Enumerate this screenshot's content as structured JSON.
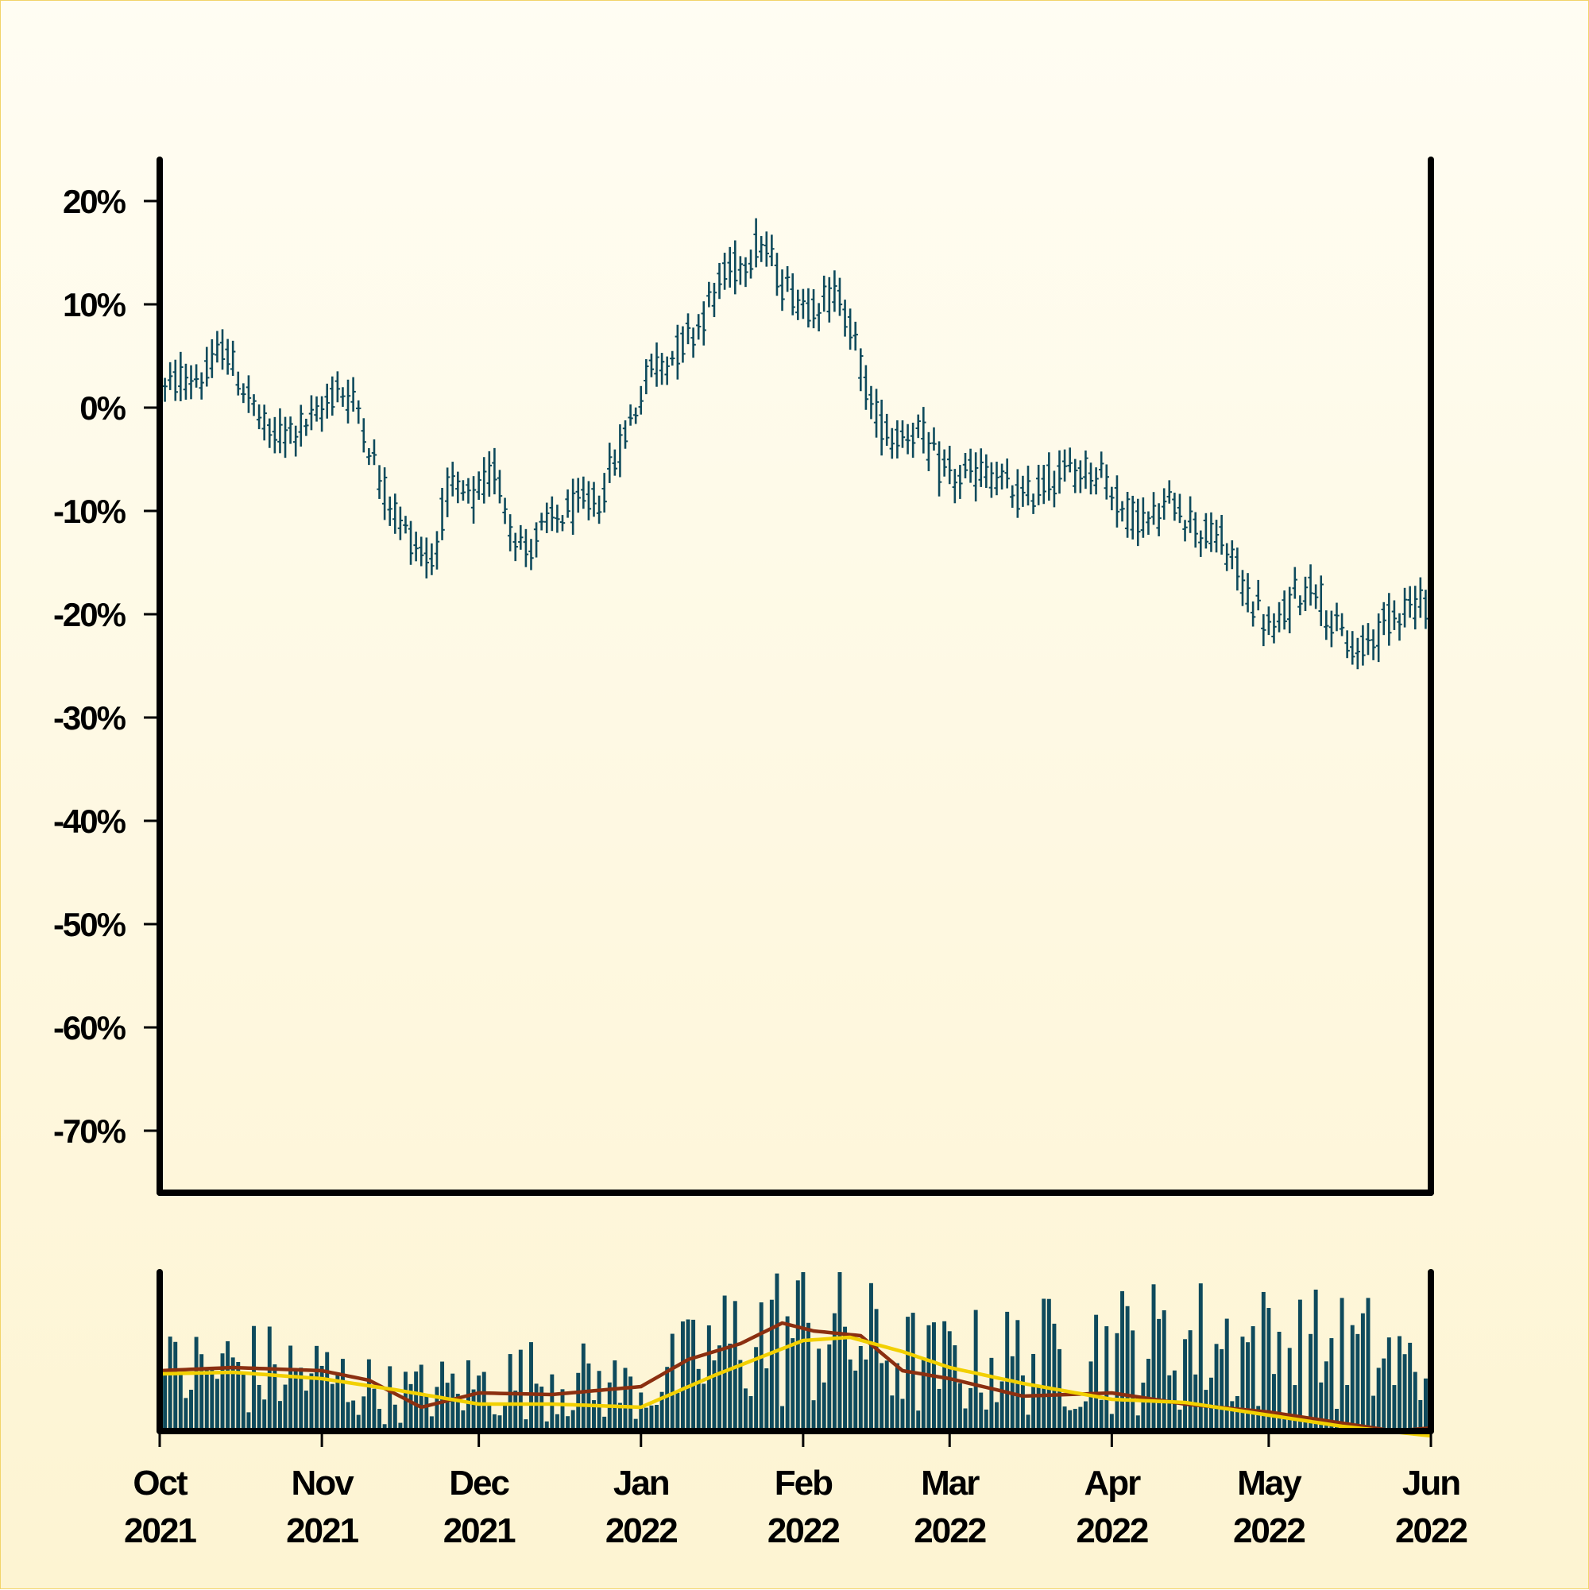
{
  "colors": {
    "background_top": "#fffdf3",
    "background_bottom": "#fdf4d2",
    "price_bars": "#0e4a5c",
    "volume_bars": "#0e4a5c",
    "volume_ma_short": "#8b2f10",
    "volume_ma_long": "#f2d000",
    "axes": "#000000",
    "border": "#f2d46a"
  },
  "chart_data": [
    {
      "type": "ohlc",
      "title": "",
      "xlabel": "",
      "ylabel": "",
      "y_unit": "%",
      "ylim": [
        -76,
        24
      ],
      "y_ticks": [
        20,
        10,
        0,
        -10,
        -20,
        -30,
        -40,
        -50,
        -60,
        -70
      ],
      "y_tick_labels": [
        "20%",
        "10%",
        "0%",
        "-10%",
        "-20%",
        "-30%",
        "-40%",
        "-50%",
        "-60%",
        "-70%"
      ],
      "x_range": [
        "2021-10-01",
        "2022-06-01"
      ],
      "grid": false,
      "close_path_anchors": [
        [
          "2021-10-01",
          1
        ],
        [
          "2021-10-05",
          3
        ],
        [
          "2021-10-10",
          3
        ],
        [
          "2021-10-13",
          6
        ],
        [
          "2021-10-16",
          3
        ],
        [
          "2021-10-22",
          -3
        ],
        [
          "2021-10-27",
          -2
        ],
        [
          "2021-10-31",
          -1
        ],
        [
          "2021-11-04",
          2
        ],
        [
          "2021-11-08",
          0
        ],
        [
          "2021-11-12",
          -7
        ],
        [
          "2021-11-17",
          -12
        ],
        [
          "2021-11-22",
          -15
        ],
        [
          "2021-11-25",
          -8
        ],
        [
          "2021-11-30",
          -9
        ],
        [
          "2021-12-04",
          -6
        ],
        [
          "2021-12-07",
          -11
        ],
        [
          "2021-12-10",
          -14
        ],
        [
          "2021-12-13",
          -12
        ],
        [
          "2021-12-18",
          -10
        ],
        [
          "2021-12-24",
          -9
        ],
        [
          "2021-12-27",
          -5
        ],
        [
          "2021-12-31",
          0
        ],
        [
          "2022-01-03",
          4
        ],
        [
          "2022-01-07",
          5
        ],
        [
          "2022-01-12",
          8
        ],
        [
          "2022-01-16",
          12
        ],
        [
          "2022-01-20",
          14
        ],
        [
          "2022-01-24",
          16
        ],
        [
          "2022-01-28",
          12
        ],
        [
          "2022-02-02",
          10
        ],
        [
          "2022-02-08",
          11
        ],
        [
          "2022-02-11",
          6
        ],
        [
          "2022-02-14",
          0
        ],
        [
          "2022-02-18",
          -3
        ],
        [
          "2022-02-23",
          -2
        ],
        [
          "2022-02-27",
          -6
        ],
        [
          "2022-03-03",
          -7
        ],
        [
          "2022-03-08",
          -6
        ],
        [
          "2022-03-15",
          -9
        ],
        [
          "2022-03-20",
          -7
        ],
        [
          "2022-03-25",
          -6
        ],
        [
          "2022-03-30",
          -6
        ],
        [
          "2022-04-03",
          -10
        ],
        [
          "2022-04-08",
          -11
        ],
        [
          "2022-04-13",
          -9
        ],
        [
          "2022-04-18",
          -12
        ],
        [
          "2022-04-22",
          -13
        ],
        [
          "2022-04-27",
          -18
        ],
        [
          "2022-05-02",
          -22
        ],
        [
          "2022-05-06",
          -18
        ],
        [
          "2022-05-10",
          -17
        ],
        [
          "2022-05-13",
          -21
        ],
        [
          "2022-05-18",
          -24
        ],
        [
          "2022-05-23",
          -21
        ],
        [
          "2022-05-27",
          -19
        ],
        [
          "2022-06-01",
          -19
        ]
      ],
      "bar_range_half_width_pct": 1.6
    },
    {
      "type": "bar",
      "title": "",
      "xlabel": "",
      "ylabel": "",
      "x_range": [
        "2021-10-01",
        "2022-06-01"
      ],
      "x_tick_labels": [
        [
          "Oct",
          "2021"
        ],
        [
          "Nov",
          "2021"
        ],
        [
          "Dec",
          "2021"
        ],
        [
          "Jan",
          "2022"
        ],
        [
          "Feb",
          "2022"
        ],
        [
          "Mar",
          "2022"
        ],
        [
          "Apr",
          "2022"
        ],
        [
          "May",
          "2022"
        ],
        [
          "Jun",
          "2022"
        ]
      ],
      "x_tick_dates": [
        "2021-10-01",
        "2021-11-01",
        "2021-12-01",
        "2022-01-01",
        "2022-02-01",
        "2022-03-01",
        "2022-04-01",
        "2022-05-01",
        "2022-06-01"
      ],
      "ylim": [
        0,
        100
      ],
      "volume_level_anchors": [
        [
          "2021-10-01",
          30
        ],
        [
          "2021-10-15",
          35
        ],
        [
          "2021-11-01",
          30
        ],
        [
          "2021-11-15",
          20
        ],
        [
          "2021-12-01",
          25
        ],
        [
          "2021-12-15",
          30
        ],
        [
          "2022-01-01",
          22
        ],
        [
          "2022-01-20",
          50
        ],
        [
          "2022-02-01",
          55
        ],
        [
          "2022-02-10",
          50
        ],
        [
          "2022-02-25",
          35
        ],
        [
          "2022-03-15",
          40
        ],
        [
          "2022-04-01",
          45
        ],
        [
          "2022-04-20",
          48
        ],
        [
          "2022-05-01",
          45
        ],
        [
          "2022-05-20",
          42
        ],
        [
          "2022-06-01",
          30
        ]
      ],
      "series": [
        {
          "values_over_time": [
            [
              "2021-10-01",
              38
            ],
            [
              "2021-10-15",
              40
            ],
            [
              "2021-11-01",
              38
            ],
            [
              "2021-11-10",
              32
            ],
            [
              "2021-11-20",
              15
            ],
            [
              "2021-12-01",
              24
            ],
            [
              "2021-12-15",
              23
            ],
            [
              "2022-01-01",
              28
            ],
            [
              "2022-01-10",
              45
            ],
            [
              "2022-01-20",
              55
            ],
            [
              "2022-01-28",
              68
            ],
            [
              "2022-02-03",
              63
            ],
            [
              "2022-02-12",
              60
            ],
            [
              "2022-02-20",
              38
            ],
            [
              "2022-03-01",
              33
            ],
            [
              "2022-03-15",
              22
            ],
            [
              "2022-04-01",
              24
            ],
            [
              "2022-04-15",
              17
            ],
            [
              "2022-05-01",
              12
            ],
            [
              "2022-05-15",
              5
            ],
            [
              "2022-05-25",
              0
            ],
            [
              "2022-06-01",
              2
            ]
          ]
        },
        {
          "values_over_time": [
            [
              "2021-10-01",
              36
            ],
            [
              "2021-10-15",
              37
            ],
            [
              "2021-11-01",
              33
            ],
            [
              "2021-11-15",
              26
            ],
            [
              "2021-12-01",
              17
            ],
            [
              "2021-12-15",
              17
            ],
            [
              "2022-01-01",
              15
            ],
            [
              "2022-01-15",
              35
            ],
            [
              "2022-02-01",
              57
            ],
            [
              "2022-02-10",
              59
            ],
            [
              "2022-02-20",
              50
            ],
            [
              "2022-03-01",
              40
            ],
            [
              "2022-03-15",
              30
            ],
            [
              "2022-04-01",
              20
            ],
            [
              "2022-04-15",
              18
            ],
            [
              "2022-05-01",
              10
            ],
            [
              "2022-05-15",
              3
            ],
            [
              "2022-06-01",
              -3
            ]
          ]
        }
      ]
    }
  ]
}
